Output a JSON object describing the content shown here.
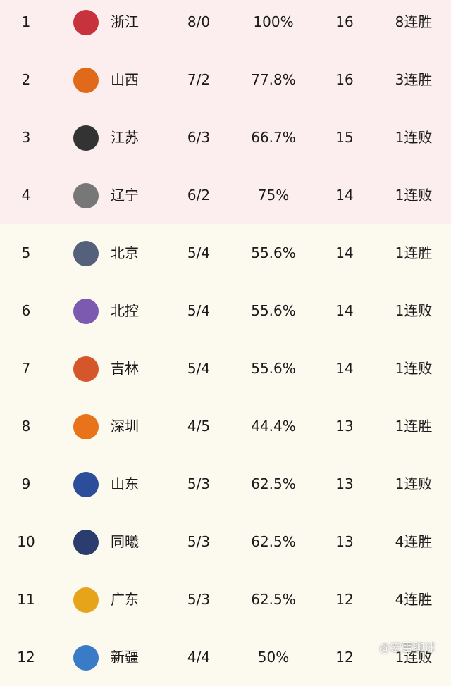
{
  "table": {
    "rows": [
      [
        "1",
        "浙江",
        "8/0",
        "100%",
        "16",
        "8连胜"
      ],
      [
        "2",
        "山西",
        "7/2",
        "77.8%",
        "16",
        "3连胜"
      ],
      [
        "3",
        "江苏",
        "6/3",
        "66.7%",
        "15",
        "1连败"
      ],
      [
        "4",
        "辽宁",
        "6/2",
        "75%",
        "14",
        "1连败"
      ],
      [
        "5",
        "北京",
        "5/4",
        "55.6%",
        "14",
        "1连胜"
      ],
      [
        "6",
        "北控",
        "5/4",
        "55.6%",
        "14",
        "1连败"
      ],
      [
        "7",
        "吉林",
        "5/4",
        "55.6%",
        "14",
        "1连败"
      ],
      [
        "8",
        "深圳",
        "4/5",
        "44.4%",
        "13",
        "1连胜"
      ],
      [
        "9",
        "山东",
        "5/3",
        "62.5%",
        "13",
        "1连败"
      ],
      [
        "10",
        "同曦",
        "5/3",
        "62.5%",
        "13",
        "4连胜"
      ],
      [
        "11",
        "广东",
        "5/3",
        "62.5%",
        "12",
        "4连胜"
      ],
      [
        "12",
        "新疆",
        "4/4",
        "50%",
        "12",
        "1连败"
      ]
    ]
  },
  "watermark": "@宏雷聊球"
}
